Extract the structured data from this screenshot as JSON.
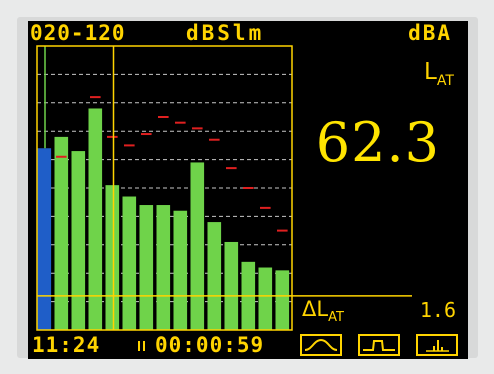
{
  "header": {
    "range": "020-120",
    "mode": "dBSlm",
    "weighting": "dBA"
  },
  "readout": {
    "param_main": "L",
    "param_sub": "AT",
    "value": "62.3",
    "delta_main": "ΔL",
    "delta_sub": "AT",
    "delta_value": "1.6"
  },
  "status": {
    "clock": "11:24",
    "elapsed": "00:00:59",
    "pause_icon": "pause-icon",
    "view_buttons": [
      {
        "icon": "sine-wave-icon"
      },
      {
        "icon": "pulse-wave-icon"
      },
      {
        "icon": "bar-chart-icon"
      }
    ]
  },
  "colors": {
    "accent": "#ffd400",
    "bar_green": "#6fd34a",
    "bar_blue": "#1f5ec8",
    "peak_red": "#e02020",
    "grid": "#c8c8c8"
  },
  "chart_data": {
    "type": "bar",
    "y_levels": 10,
    "values": [
      6.4,
      6.8,
      6.3,
      7.8,
      5.1,
      4.7,
      4.4,
      4.4,
      4.2,
      5.9,
      3.8,
      3.1,
      2.4,
      2.2,
      2.1
    ],
    "peaks": [
      null,
      6.1,
      null,
      8.2,
      6.8,
      6.5,
      6.9,
      7.5,
      7.3,
      7.1,
      6.7,
      5.7,
      5.0,
      4.3,
      3.5
    ],
    "highlighted_bar": 0,
    "cursor_position": 4.5,
    "threshold_level": 1.2,
    "grid": true
  }
}
